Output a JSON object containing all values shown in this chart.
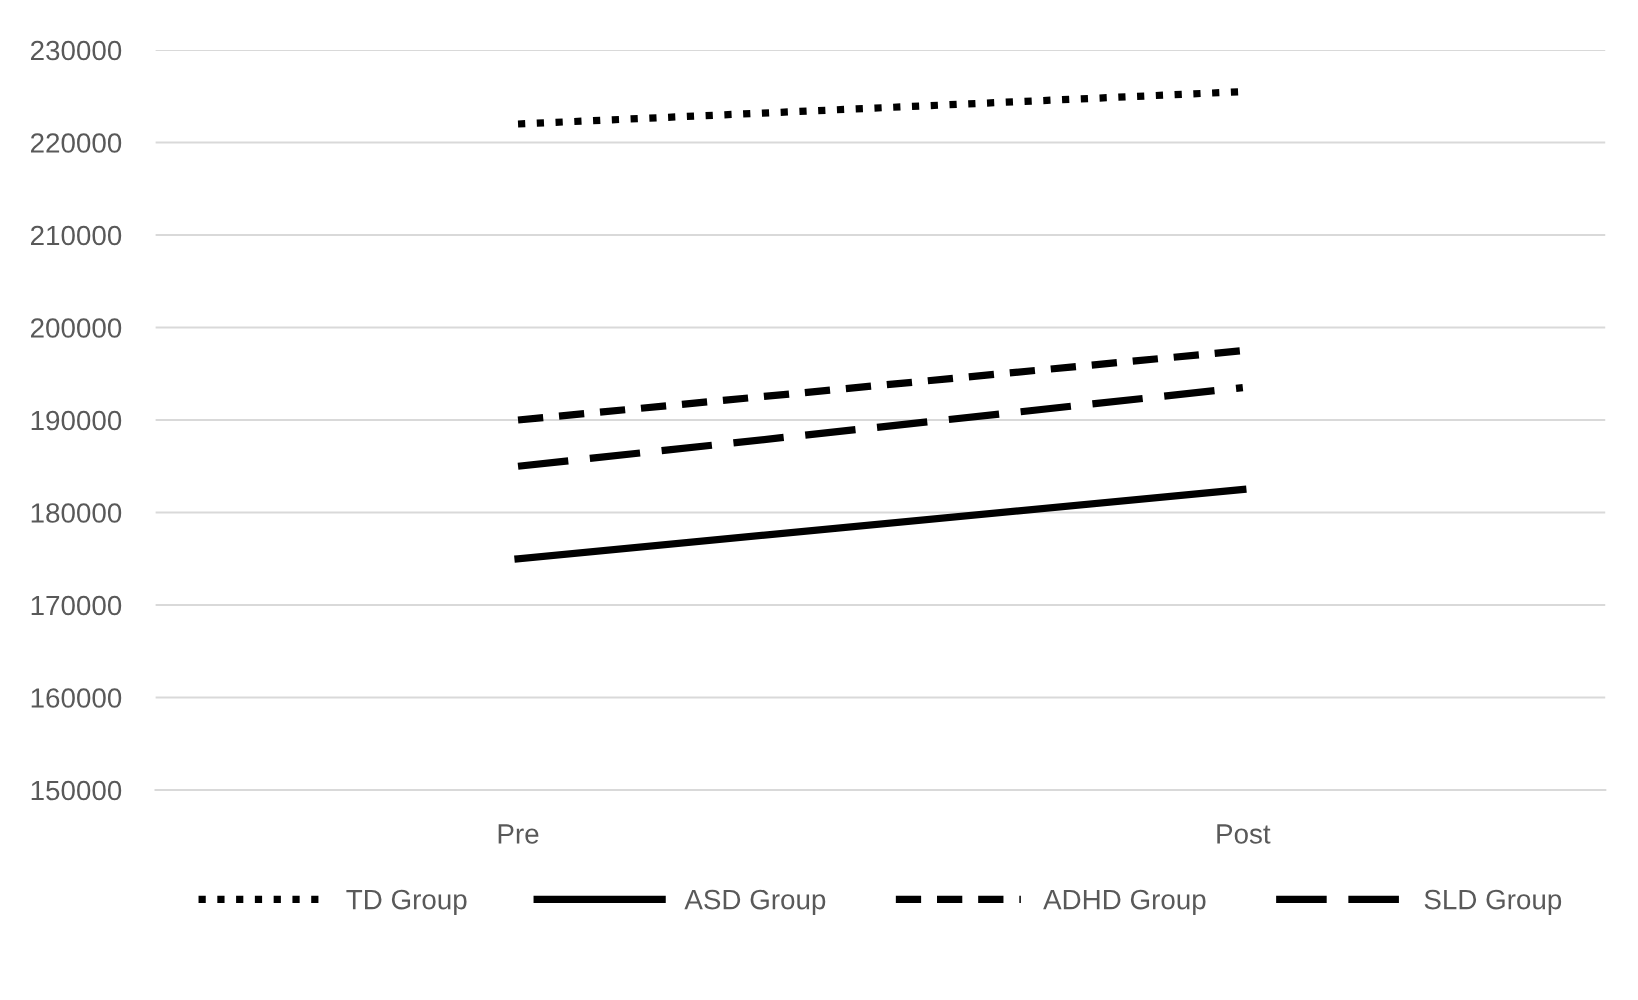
{
  "chart_data": {
    "type": "line",
    "categories": [
      "Pre",
      "Post"
    ],
    "series": [
      {
        "name": "TD Group",
        "color": "#000000",
        "line_style": "dotted",
        "values": [
          222000,
          225500
        ]
      },
      {
        "name": "ASD Group",
        "color": "#000000",
        "line_style": "solid",
        "values": [
          175000,
          182500
        ]
      },
      {
        "name": "ADHD Group",
        "color": "#000000",
        "line_style": "dashed",
        "values": [
          190000,
          197500
        ]
      },
      {
        "name": "SLD Group",
        "color": "#000000",
        "line_style": "dashed",
        "values": [
          185000,
          193500
        ]
      }
    ],
    "ylim": [
      150000,
      230000
    ],
    "yticks": [
      150000,
      160000,
      170000,
      180000,
      190000,
      200000,
      210000,
      220000,
      230000
    ],
    "grid": "y",
    "legend": "bottom",
    "marker": "none"
  }
}
